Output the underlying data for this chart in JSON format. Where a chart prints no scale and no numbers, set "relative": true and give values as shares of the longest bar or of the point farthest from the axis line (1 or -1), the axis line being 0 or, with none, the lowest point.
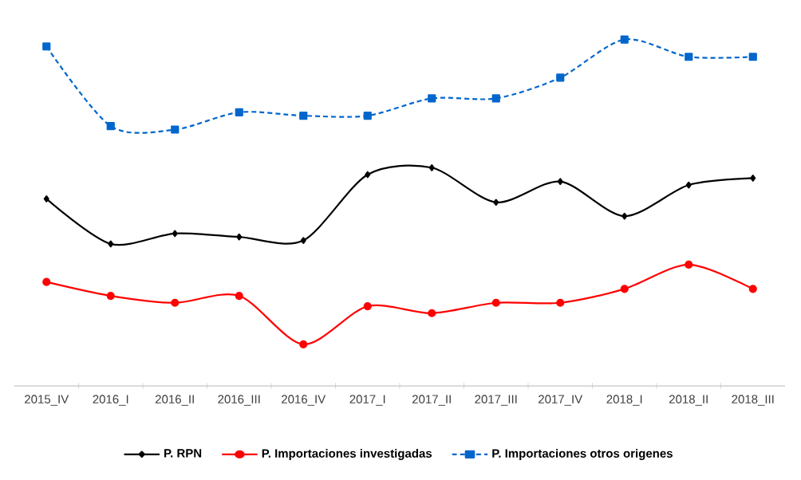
{
  "chart_data": {
    "type": "line",
    "relative": true,
    "legend": "bottom",
    "grid": false,
    "categories": [
      "2015_IV",
      "2016_I",
      "2016_II",
      "2016_III",
      "2016_IV",
      "2017_I",
      "2017_II",
      "2017_III",
      "2017_IV",
      "2018_I",
      "2018_II",
      "2018_III"
    ],
    "series": [
      {
        "name": "P. RPN",
        "color": "#000000",
        "marker": "diamond",
        "line_style": "solid",
        "values": [
          0.54,
          0.41,
          0.44,
          0.43,
          0.42,
          0.61,
          0.63,
          0.53,
          0.59,
          0.49,
          0.58,
          0.6
        ]
      },
      {
        "name": "P. Importaciones investigadas",
        "color": "#ff0000",
        "marker": "circle",
        "line_style": "solid",
        "values": [
          0.3,
          0.26,
          0.24,
          0.26,
          0.12,
          0.23,
          0.21,
          0.24,
          0.24,
          0.28,
          0.35,
          0.28
        ]
      },
      {
        "name": "P. Importaciones otros origenes",
        "color": "#0066cc",
        "marker": "square",
        "line_style": "dashed",
        "values": [
          0.98,
          0.75,
          0.74,
          0.79,
          0.78,
          0.78,
          0.83,
          0.83,
          0.89,
          1.0,
          0.95,
          0.95
        ]
      }
    ]
  }
}
